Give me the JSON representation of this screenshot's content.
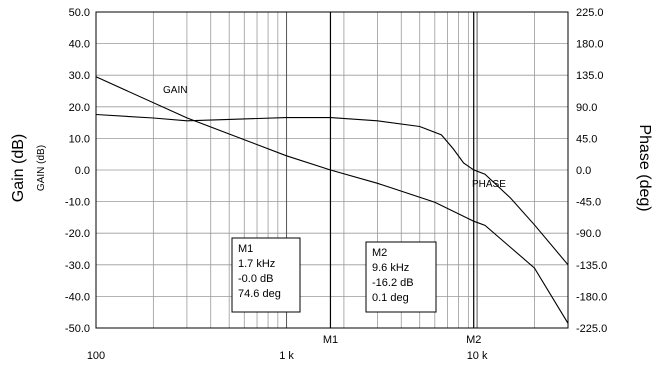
{
  "chart_data": {
    "type": "line",
    "x_scale": "log",
    "xlim": [
      100,
      30000
    ],
    "x_ticks": [
      {
        "value": 100,
        "label": "100"
      },
      {
        "value": 1000,
        "label": "1 k"
      },
      {
        "value": 10000,
        "label": "10 k"
      }
    ],
    "left_axis": {
      "title": "Gain (dB)",
      "subtitle": "GAIN (dB)",
      "ylim": [
        -50,
        50
      ],
      "ticks": [
        50,
        40,
        30,
        20,
        10,
        0,
        -10,
        -20,
        -30,
        -40,
        -50
      ],
      "tick_labels": [
        "50.0",
        "40.0",
        "30.0",
        "20.0",
        "10.0",
        "0.0",
        "-10.0",
        "-20.0",
        "-30.0",
        "-40.0",
        "-50.0"
      ]
    },
    "right_axis": {
      "title": "Phase (deg)",
      "ylim": [
        -225,
        225
      ],
      "ticks": [
        225,
        180,
        135,
        90,
        45,
        0,
        -45,
        -90,
        -135,
        -180,
        -225
      ],
      "tick_labels": [
        "225.0",
        "180.0",
        "135.0",
        "90.0",
        "45.0",
        "0.0",
        "-45.0",
        "-90.0",
        "-135.0",
        "-180.0",
        "-225.0"
      ]
    },
    "grid": true,
    "series": [
      {
        "name": "GAIN",
        "axis": "left",
        "x": [
          100,
          300,
          1000,
          1700,
          3000,
          6000,
          9600,
          11000,
          20000,
          30000
        ],
        "y": [
          29.5,
          16.5,
          4.5,
          -0.0,
          -4.2,
          -10.2,
          -16.2,
          -17.5,
          -31.0,
          -48.5
        ]
      },
      {
        "name": "PHASE",
        "axis": "right",
        "x": [
          100,
          200,
          300,
          500,
          1000,
          1700,
          3000,
          5000,
          6500,
          7500,
          8500,
          9600,
          11000,
          15000,
          20000,
          30000
        ],
        "y": [
          79,
          74,
          70,
          72,
          74.6,
          74.6,
          70,
          62,
          50,
          30,
          10,
          0.1,
          -6,
          -40,
          -78,
          -135
        ]
      }
    ],
    "markers": [
      {
        "label": "M1",
        "x": 1700,
        "lines": [
          "M1",
          "1.7 kHz",
          "-0.0 dB",
          "74.6 deg"
        ]
      },
      {
        "label": "M2",
        "x": 9600,
        "lines": [
          "M2",
          "9.6 kHz",
          "-16.2 dB",
          "0.1 deg"
        ]
      }
    ]
  }
}
